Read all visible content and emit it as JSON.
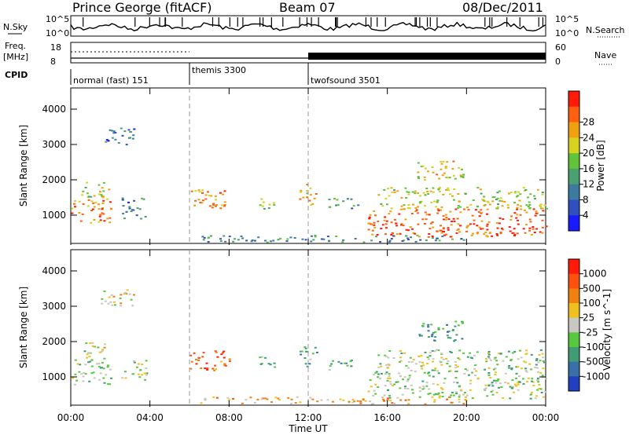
{
  "header": {
    "station": "Prince George (fitACF)",
    "beam": "Beam 07",
    "date": "08/Dec/2011"
  },
  "side_labels": {
    "nsky": "N.Sky",
    "freq": "Freq.",
    "freq_unit": "[MHz]",
    "cpid": "CPID",
    "nsearch": "N.Search",
    "nave": "Nave"
  },
  "noise_axis": {
    "top": "10^5",
    "bottom": "10^0"
  },
  "freq_axis": {
    "left_ticks": [
      "18",
      "8"
    ],
    "right_ticks": [
      "60",
      "0"
    ]
  },
  "cpid_segments": [
    {
      "label": "normal (fast) 151",
      "start_hour": 0
    },
    {
      "label": "themis 3300",
      "start_hour": 6
    },
    {
      "label": "twofsound 3501",
      "start_hour": 12
    }
  ],
  "chart_data": [
    {
      "type": "heatmap",
      "title": "",
      "xlabel": "Time UT",
      "ylabel": "Slant Range [km]",
      "x_ticks": [
        "00:00",
        "04:00",
        "08:00",
        "12:00",
        "16:00",
        "20:00",
        "00:00"
      ],
      "xlim_hours": [
        0,
        24
      ],
      "y_ticks": [
        "1000",
        "2000",
        "3000",
        "4000"
      ],
      "ylim": [
        200,
        4600
      ],
      "colorbar_label": "Power [dB]",
      "colorbar_ticks": [
        "4",
        "8",
        "12",
        "16",
        "20",
        "24",
        "28"
      ],
      "colorbar_colors": [
        "#1a1aff",
        "#3050c0",
        "#3d7aa0",
        "#4aa070",
        "#62c23a",
        "#d8d220",
        "#f0a010",
        "#ff6010",
        "#ff1a0a"
      ],
      "echo_regions": [
        {
          "t0": 0.0,
          "t1": 2.0,
          "r0": 800,
          "r1": 1500,
          "level": 0.8
        },
        {
          "t0": 0.5,
          "t1": 2.0,
          "r0": 1500,
          "r1": 2000,
          "level": 0.6
        },
        {
          "t0": 2.5,
          "t1": 3.8,
          "r0": 900,
          "r1": 1500,
          "level": 0.25
        },
        {
          "t0": 6.0,
          "t1": 8.0,
          "r0": 1200,
          "r1": 1800,
          "level": 0.8
        },
        {
          "t0": 9.5,
          "t1": 10.3,
          "r0": 1200,
          "r1": 1600,
          "level": 0.5
        },
        {
          "t0": 11.5,
          "t1": 12.4,
          "r0": 1300,
          "r1": 1900,
          "level": 0.7
        },
        {
          "t0": 13.0,
          "t1": 14.5,
          "r0": 1200,
          "r1": 1500,
          "level": 0.35
        },
        {
          "t0": 15.0,
          "t1": 24.0,
          "r0": 400,
          "r1": 1200,
          "level": 0.9
        },
        {
          "t0": 15.5,
          "t1": 24.0,
          "r0": 1200,
          "r1": 1800,
          "level": 0.6
        },
        {
          "t0": 17.5,
          "t1": 19.8,
          "r0": 2000,
          "r1": 2600,
          "level": 0.65
        },
        {
          "t0": 6.5,
          "t1": 20.0,
          "r0": 250,
          "r1": 450,
          "level": 0.3
        },
        {
          "t0": 1.5,
          "t1": 3.2,
          "r0": 3000,
          "r1": 3500,
          "level": 0.2
        }
      ]
    },
    {
      "type": "heatmap",
      "title": "",
      "xlabel": "Time UT",
      "ylabel": "Slant Range [km]",
      "x_ticks": [
        "00:00",
        "04:00",
        "08:00",
        "12:00",
        "16:00",
        "20:00",
        "00:00"
      ],
      "xlim_hours": [
        0,
        24
      ],
      "y_ticks": [
        "1000",
        "2000",
        "3000",
        "4000"
      ],
      "ylim": [
        200,
        4600
      ],
      "colorbar_label": "Velocity [m s^-1]",
      "colorbar_ticks": [
        "1000",
        "500",
        "100",
        "25",
        "-25",
        "-100",
        "-500",
        "-1000"
      ],
      "colorbar_colors": [
        "#2040c0",
        "#3a70a8",
        "#3f9c74",
        "#58c840",
        "#c8c8c0",
        "#f0c020",
        "#f08010",
        "#ff5010",
        "#ff1a0a"
      ],
      "echo_regions": [
        {
          "t0": 0.0,
          "t1": 2.0,
          "r0": 800,
          "r1": 1500,
          "level": 0.45
        },
        {
          "t0": 0.5,
          "t1": 2.0,
          "r0": 1500,
          "r1": 2000,
          "level": 0.5
        },
        {
          "t0": 2.5,
          "t1": 3.8,
          "r0": 900,
          "r1": 1500,
          "level": 0.45
        },
        {
          "t0": 6.0,
          "t1": 8.0,
          "r0": 1200,
          "r1": 1800,
          "level": 0.85
        },
        {
          "t0": 9.5,
          "t1": 10.3,
          "r0": 1200,
          "r1": 1600,
          "level": 0.3
        },
        {
          "t0": 11.5,
          "t1": 12.4,
          "r0": 1300,
          "r1": 1900,
          "level": 0.3
        },
        {
          "t0": 13.0,
          "t1": 14.5,
          "r0": 1200,
          "r1": 1500,
          "level": 0.35
        },
        {
          "t0": 15.0,
          "t1": 24.0,
          "r0": 400,
          "r1": 1200,
          "level": 0.45
        },
        {
          "t0": 15.5,
          "t1": 24.0,
          "r0": 1200,
          "r1": 1800,
          "level": 0.45
        },
        {
          "t0": 17.5,
          "t1": 19.8,
          "r0": 2000,
          "r1": 2600,
          "level": 0.25
        },
        {
          "t0": 6.5,
          "t1": 20.0,
          "r0": 250,
          "r1": 450,
          "level": 0.65
        },
        {
          "t0": 1.5,
          "t1": 3.2,
          "r0": 3000,
          "r1": 3500,
          "level": 0.6
        }
      ]
    }
  ]
}
